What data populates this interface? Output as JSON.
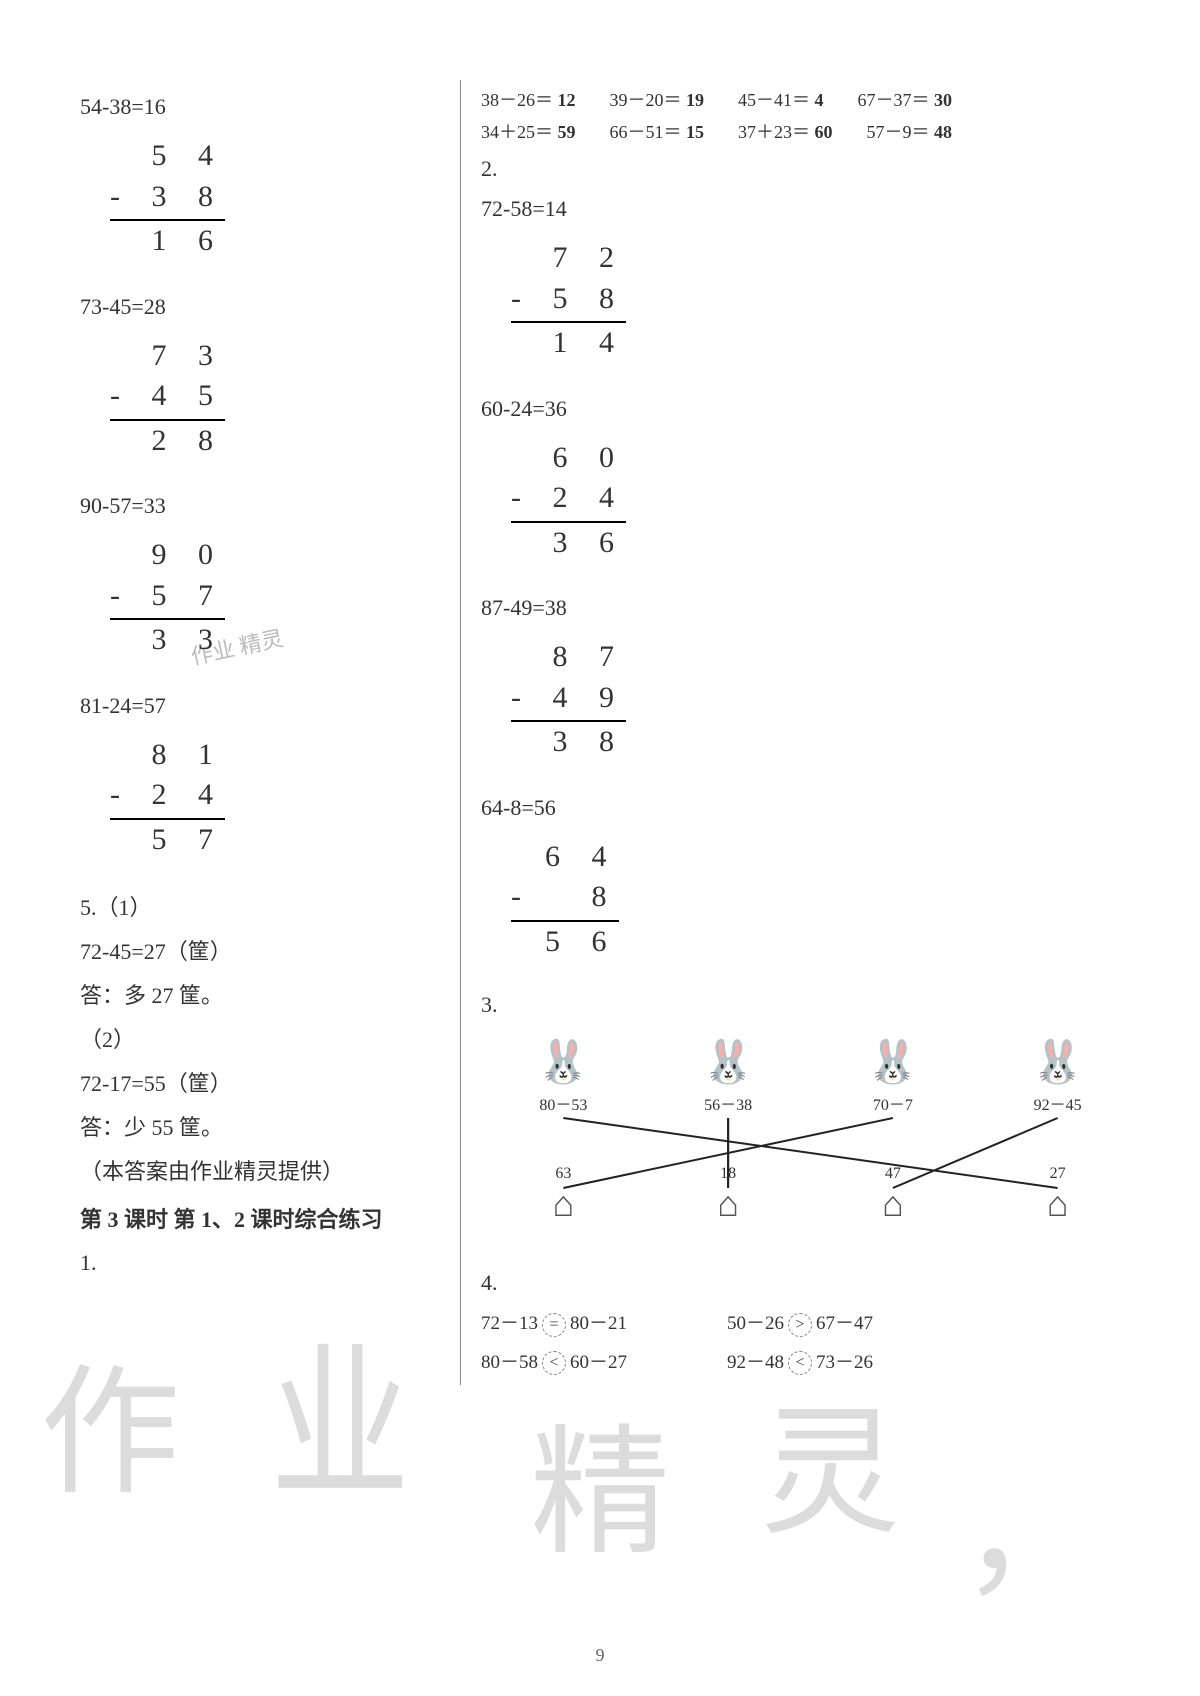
{
  "left": {
    "p1": {
      "eq": "54-38=16",
      "top": "5 4",
      "mid": "- 3 8",
      "bot": "1 6"
    },
    "p2": {
      "eq": "73-45=28",
      "top": "7 3",
      "mid": "- 4 5",
      "bot": "2 8"
    },
    "p3": {
      "eq": "90-57=33",
      "top": "9 0",
      "mid": "- 5 7",
      "bot": "3 3"
    },
    "p4": {
      "eq": "81-24=57",
      "top": "8 1",
      "mid": "- 2 4",
      "bot": "5 7"
    },
    "q5_label": "5.（1）",
    "q5_1_eq": "72-45=27（筐）",
    "q5_1_ans": "答：多 27 筐。",
    "q5_2_label": "（2）",
    "q5_2_eq": "72-17=55（筐）",
    "q5_2_ans": "答：少 55 筐。",
    "credit": "（本答案由作业精灵提供）",
    "section_title": "第 3 课时  第 1、2 课时综合练习",
    "q1_label": "1."
  },
  "right": {
    "row1": [
      {
        "lhs": "38－26＝",
        "ans": "12"
      },
      {
        "lhs": "39－20＝",
        "ans": "19"
      },
      {
        "lhs": "45－41＝",
        "ans": "4"
      },
      {
        "lhs": "67－37＝",
        "ans": "30"
      }
    ],
    "row2": [
      {
        "lhs": "34＋25＝",
        "ans": "59"
      },
      {
        "lhs": "66－51＝",
        "ans": "15"
      },
      {
        "lhs": "37＋23＝",
        "ans": "60"
      },
      {
        "lhs": "57－9＝",
        "ans": "48"
      }
    ],
    "q2_label": "2.",
    "p1": {
      "eq": "72-58=14",
      "top": "7 2",
      "mid": "- 5 8",
      "bot": "1 4"
    },
    "p2": {
      "eq": "60-24=36",
      "top": "6 0",
      "mid": "- 2 4",
      "bot": "3 6"
    },
    "p3": {
      "eq": "87-49=38",
      "top": "8 7",
      "mid": "- 4 9",
      "bot": "3 8"
    },
    "p4": {
      "eq": "64-8=56",
      "top": "6 4",
      "mid": "-   8",
      "bot": "5 6"
    },
    "q3_label": "3.",
    "rabbits": [
      {
        "expr": "80－53"
      },
      {
        "expr": "56－38"
      },
      {
        "expr": "70－7"
      },
      {
        "expr": "92－45"
      }
    ],
    "houses": [
      {
        "val": "63"
      },
      {
        "val": "18"
      },
      {
        "val": "47"
      },
      {
        "val": "27"
      }
    ],
    "q3_lines": [
      {
        "from": 0,
        "to": 3
      },
      {
        "from": 1,
        "to": 1
      },
      {
        "from": 2,
        "to": 0
      },
      {
        "from": 3,
        "to": 2
      }
    ],
    "q4_label": "4.",
    "q4_rows": [
      {
        "a": "72－13",
        "cmp": "=",
        "b": "80－21",
        "c": "50－26",
        "cmp2": ">",
        "d": "67－47"
      },
      {
        "a": "80－58",
        "cmp": "<",
        "b": "60－27",
        "c": "92－48",
        "cmp2": "<",
        "d": "73－26"
      }
    ]
  },
  "watermarks": {
    "w1": "作",
    "w2": "业",
    "w3": "精",
    "w4": "灵",
    "w5": "，"
  },
  "stamp_text": "作业\n精灵",
  "page_number": "9"
}
